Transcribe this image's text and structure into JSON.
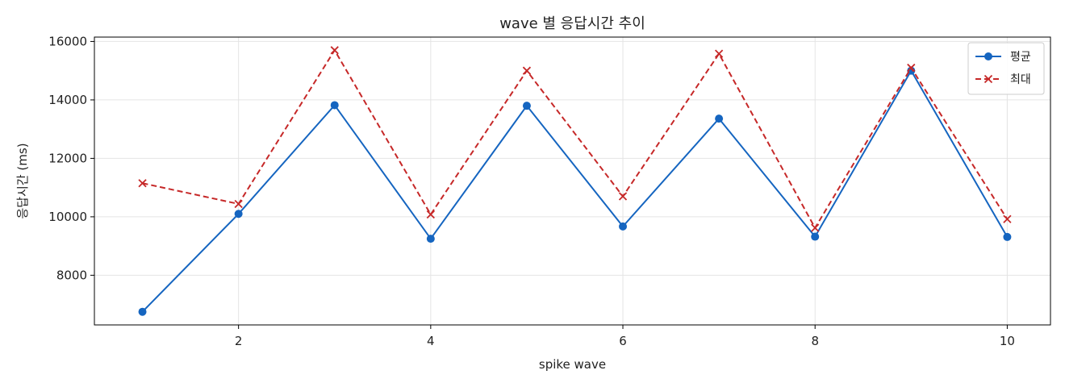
{
  "chart_data": {
    "type": "line",
    "title": "wave 별 응답시간 추이",
    "xlabel": "spike wave",
    "ylabel": "응답시간 (ms)",
    "x": [
      1,
      2,
      3,
      4,
      5,
      6,
      7,
      8,
      9,
      10
    ],
    "xlim": [
      0.5,
      10.45
    ],
    "ylim": [
      6300,
      16150
    ],
    "xticks": [
      2,
      4,
      6,
      8,
      10
    ],
    "yticks": [
      8000,
      10000,
      12000,
      14000,
      16000
    ],
    "grid": true,
    "legend_position": "top-right",
    "series": [
      {
        "name": "평균",
        "color": "#1565c0",
        "line_style": "solid",
        "marker": "circle",
        "values": [
          6750,
          10100,
          13820,
          9250,
          13800,
          9670,
          13360,
          9320,
          15000,
          9310
        ]
      },
      {
        "name": "최대",
        "color": "#c62828",
        "line_style": "dashed",
        "marker": "x",
        "values": [
          11150,
          10440,
          15700,
          10080,
          15000,
          10700,
          15580,
          9620,
          15100,
          9920
        ]
      }
    ]
  }
}
